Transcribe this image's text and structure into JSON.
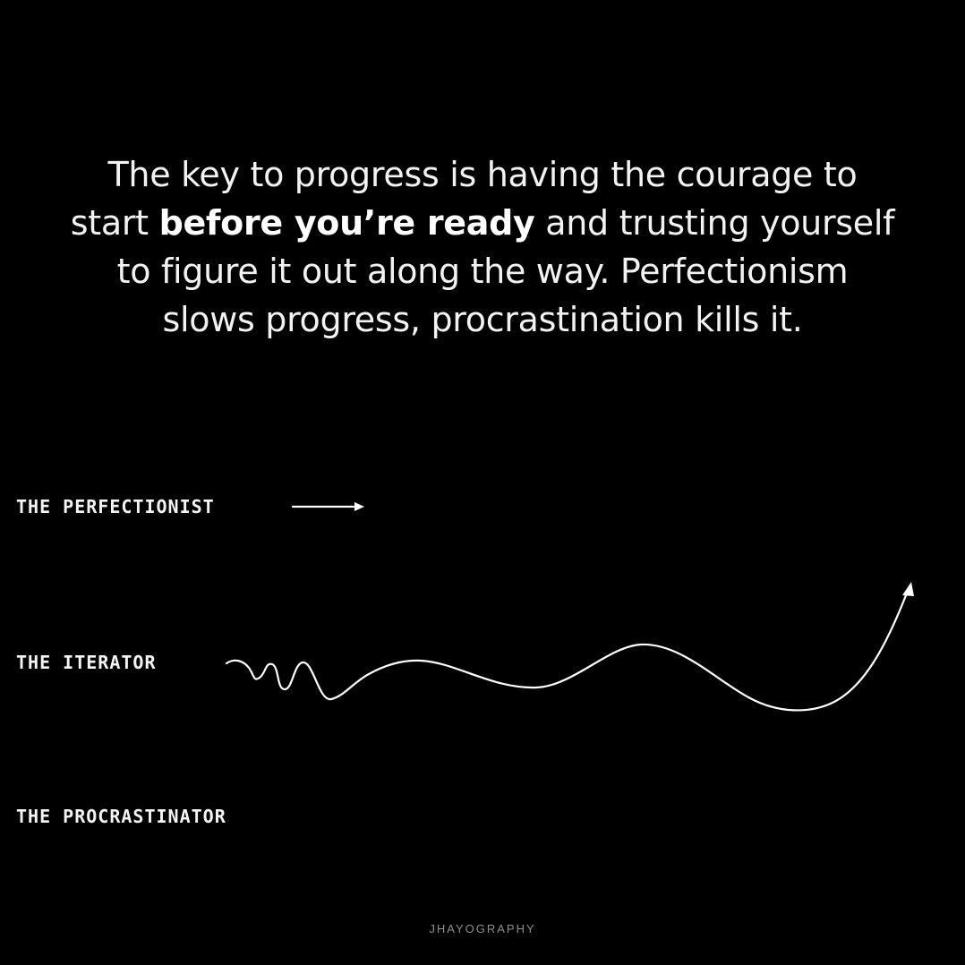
{
  "quote": {
    "line1": "The key to progress is having the courage to",
    "line2_start": "start ",
    "line2_bold": "before you’re ready",
    "line2_end": " and trusting yourself",
    "line3": "to figure it out along the way. Perfectionism",
    "line4": "slows progress, procrastination kills it."
  },
  "labels": {
    "perfectionist": "THE PERFECTIONIST",
    "iterator": "THE ITERATOR",
    "procrastinator": "THE PROCRASTINATOR"
  },
  "watermark": "JHAYOGRAPHY",
  "colors": {
    "background": "#000000",
    "text": "#ffffff",
    "watermark": "#8f8f8f"
  },
  "icons": {
    "perfectionist": "short-straight-arrow-icon",
    "iterator": "squiggly-rising-arrow-icon"
  }
}
